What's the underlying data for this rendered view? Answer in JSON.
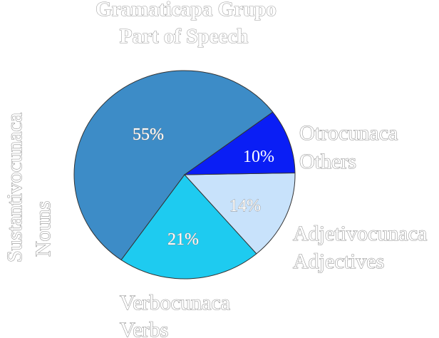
{
  "chart_data": {
    "type": "pie",
    "title": "Gramaticapa Grupo",
    "subtitle": "Part of Speech",
    "slices": [
      {
        "id": "others",
        "label_line1": "Otrocunaca",
        "label_line2": "Others",
        "value": 10,
        "value_label": "10%",
        "color": "#0a1ef5"
      },
      {
        "id": "adjectives",
        "label_line1": "Adjetivocunaca",
        "label_line2": "Adjectives",
        "value": 14,
        "value_label": "14%",
        "color": "#c8e2fb"
      },
      {
        "id": "verbs",
        "label_line1": "Verbocunaca",
        "label_line2": "Verbs",
        "value": 21,
        "value_label": "21%",
        "color": "#1ecbf0"
      },
      {
        "id": "nouns",
        "label_line1": "Sustantivocunaca",
        "label_line2": "Nouns",
        "value": 55,
        "value_label": "55%",
        "color": "#3d8cc7"
      }
    ]
  }
}
